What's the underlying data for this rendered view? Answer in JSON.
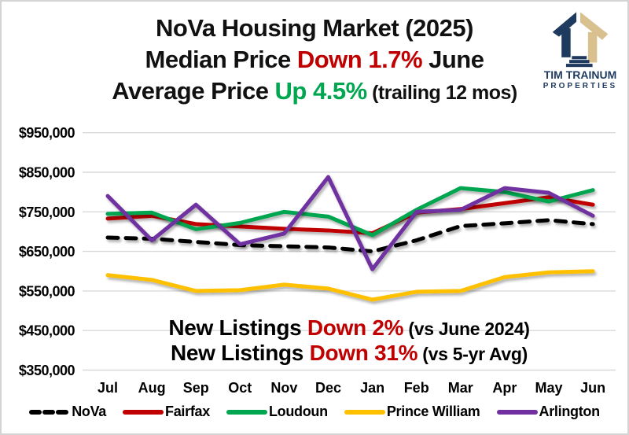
{
  "title": {
    "line1": "NoVa Housing Market (2025)",
    "line2_prefix": "Median Price ",
    "line2_highlight": "Down 1.7%",
    "line2_suffix": " June",
    "line3_prefix": "Average Price ",
    "line3_highlight": "Up 4.5%",
    "line3_suffix": " (trailing 12 mos)",
    "highlight_down_color": "#C00000",
    "highlight_up_color": "#00A650"
  },
  "logo": {
    "name": "TIM TRAINUM",
    "subtitle": "PROPERTIES",
    "navy_color": "#1E3A5F",
    "tan_color": "#D9C08F"
  },
  "chart_data": {
    "type": "line",
    "categories": [
      "Jul",
      "Aug",
      "Sep",
      "Oct",
      "Nov",
      "Dec",
      "Jan",
      "Feb",
      "Mar",
      "Apr",
      "May",
      "Jun"
    ],
    "series": [
      {
        "name": "NoVa",
        "color": "#000000",
        "dashed": true,
        "values": [
          685000,
          682000,
          674000,
          666000,
          663000,
          660000,
          650000,
          678000,
          714000,
          721000,
          729000,
          719000
        ]
      },
      {
        "name": "Fairfax",
        "color": "#C00000",
        "dashed": false,
        "values": [
          733000,
          740000,
          719000,
          713000,
          707000,
          703000,
          696000,
          748000,
          757000,
          772000,
          787000,
          768000
        ]
      },
      {
        "name": "Loudoun",
        "color": "#00A650",
        "dashed": false,
        "values": [
          745000,
          748000,
          706000,
          722000,
          750000,
          738000,
          691000,
          755000,
          810000,
          800000,
          776000,
          805000
        ]
      },
      {
        "name": "Prince William",
        "color": "#FFC000",
        "dashed": false,
        "values": [
          590000,
          578000,
          550000,
          552000,
          566000,
          556000,
          528000,
          548000,
          550000,
          585000,
          597000,
          600000
        ]
      },
      {
        "name": "Arlington",
        "color": "#7030A0",
        "dashed": false,
        "values": [
          790000,
          678000,
          768000,
          668000,
          695000,
          838000,
          605000,
          750000,
          755000,
          810000,
          798000,
          740000
        ]
      }
    ],
    "y_ticks": [
      {
        "label": "$950,000",
        "value": 950000
      },
      {
        "label": "$850,000",
        "value": 850000
      },
      {
        "label": "$750,000",
        "value": 750000
      },
      {
        "label": "$650,000",
        "value": 650000
      },
      {
        "label": "$550,000",
        "value": 550000
      },
      {
        "label": "$450,000",
        "value": 450000
      },
      {
        "label": "$350,000",
        "value": 350000
      }
    ],
    "ylim": [
      350000,
      950000
    ],
    "ytick_step": 100000,
    "grid": "horizontal",
    "legend_position": "bottom",
    "annotations": [
      {
        "segments": [
          {
            "text": "New Listings ",
            "color": "#000000",
            "size": 28
          },
          {
            "text": "Down 2%",
            "color": "#C00000",
            "size": 28
          },
          {
            "text": " (vs June 2024)",
            "color": "#000000",
            "size": 23
          }
        ]
      },
      {
        "segments": [
          {
            "text": "New Listings ",
            "color": "#000000",
            "size": 28
          },
          {
            "text": "Down 31%",
            "color": "#C00000",
            "size": 28
          },
          {
            "text": " (vs 5-yr Avg)",
            "color": "#000000",
            "size": 23
          }
        ]
      }
    ]
  }
}
